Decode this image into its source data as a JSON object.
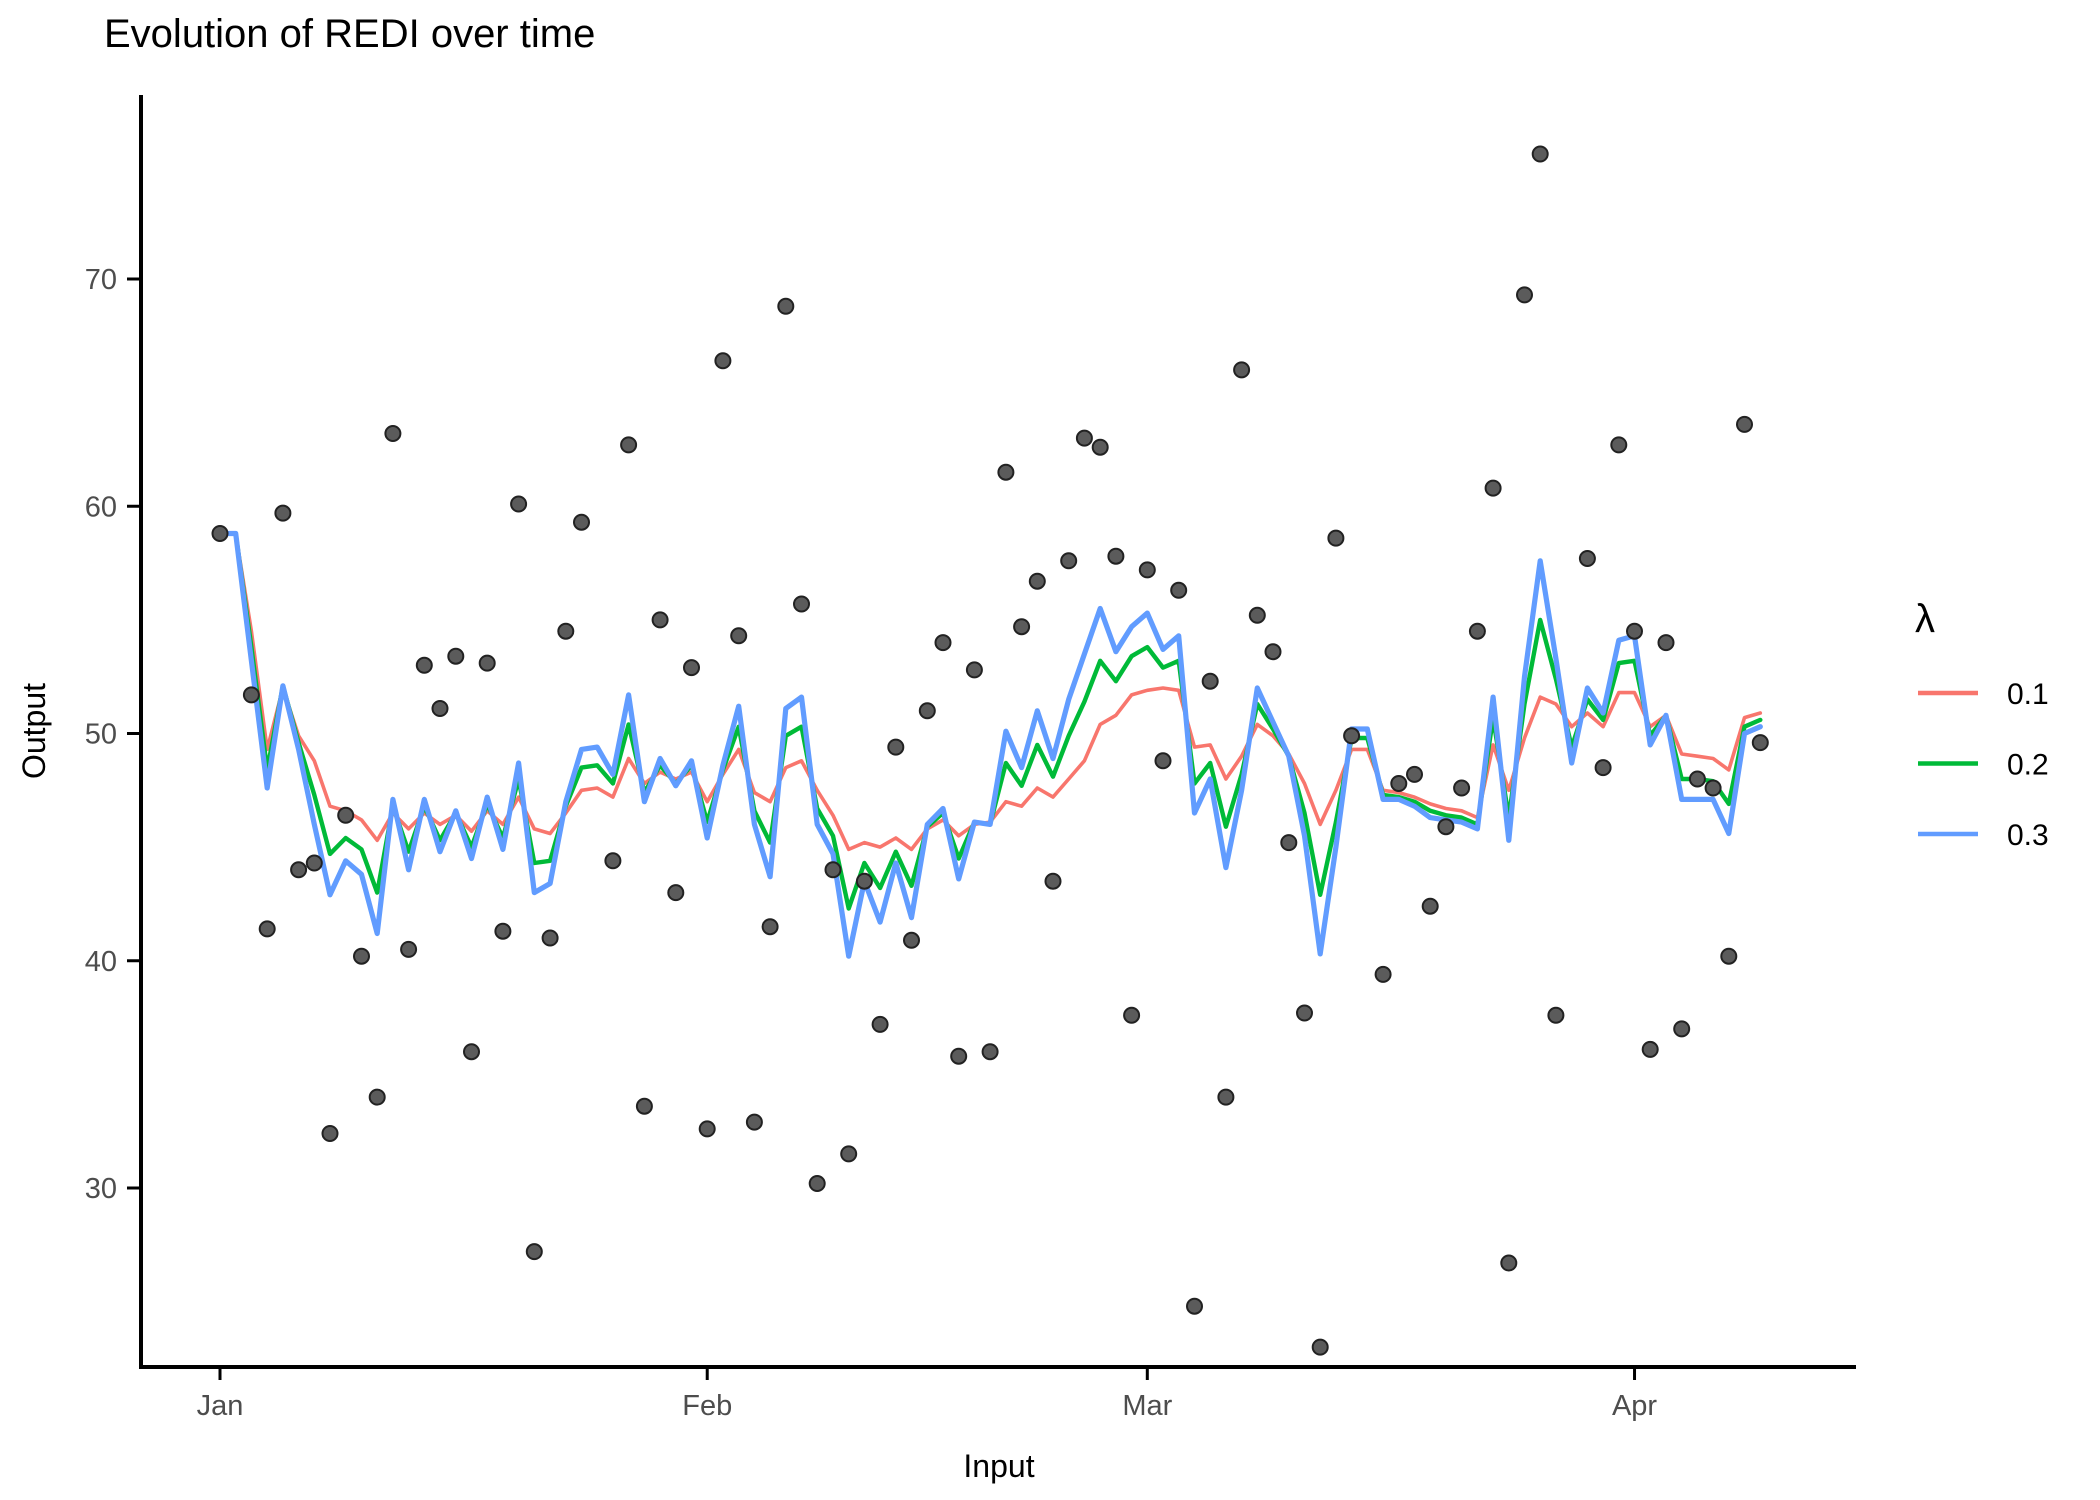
{
  "legend": {
    "title": "λ",
    "entries": [
      {
        "label": "0.1",
        "lambda": 0.1,
        "color": "#F8766D"
      },
      {
        "label": "0.2",
        "lambda": 0.2,
        "color": "#00BA38"
      },
      {
        "label": "0.3",
        "lambda": 0.3,
        "color": "#619CFF"
      }
    ]
  },
  "style": {
    "background": "#FFFFFF",
    "axis_color": "#000000",
    "tick_label_color": "#4D4D4D",
    "point_fill": "#5B5B5B",
    "point_stroke": "#222222",
    "line_widths": [
      3.6,
      4.4,
      5.2
    ]
  },
  "chart_data": {
    "type": "line+scatter",
    "title": "Evolution of REDI over time",
    "xlabel": "Input",
    "ylabel": "Output",
    "x_unit": "day index, day 0 = Jan 1, daily spacing",
    "x_ticks": [
      {
        "label": "Jan",
        "day": 0
      },
      {
        "label": "Feb",
        "day": 31
      },
      {
        "label": "Mar",
        "day": 59
      },
      {
        "label": "Apr",
        "day": 90
      }
    ],
    "y_ticks": [
      30,
      40,
      50,
      60,
      70
    ],
    "ylim": [
      22,
      78.5
    ],
    "grid": false,
    "legend_position": "right",
    "scatter": {
      "name": "raw daily observations",
      "values": [
        58.8,
        null,
        51.7,
        41.4,
        59.7,
        44.0,
        44.3,
        32.4,
        46.4,
        40.2,
        34.0,
        63.2,
        40.5,
        53.0,
        51.1,
        53.4,
        36.0,
        53.1,
        41.3,
        60.1,
        27.2,
        41.0,
        54.5,
        59.3,
        null,
        44.4,
        62.7,
        33.6,
        55.0,
        43.0,
        52.9,
        32.6,
        66.4,
        54.3,
        32.9,
        41.5,
        68.8,
        55.7,
        30.2,
        44.0,
        31.5,
        43.5,
        37.2,
        49.4,
        40.9,
        51.0,
        54.0,
        35.8,
        52.8,
        36.0,
        61.5,
        54.7,
        56.7,
        43.5,
        57.6,
        63.0,
        62.6,
        57.8,
        37.6,
        57.2,
        48.8,
        56.3,
        24.8,
        52.3,
        34.0,
        66.0,
        55.2,
        53.6,
        45.2,
        37.7,
        23.0,
        58.6,
        49.9,
        null,
        39.4,
        47.8,
        48.2,
        42.4,
        45.9,
        47.6,
        54.5,
        60.8,
        26.7,
        69.3,
        75.5,
        37.6,
        null,
        57.7,
        48.5,
        62.7,
        54.5,
        36.1,
        54.0,
        37.0,
        48.0,
        47.6,
        40.2,
        63.6,
        49.6
      ]
    },
    "series": [
      {
        "name": "0.1",
        "lambda": 0.1,
        "color": "#F8766D",
        "values": [
          58.8,
          58.8,
          54.5,
          49.3,
          52.0,
          49.9,
          48.8,
          46.8,
          46.6,
          46.2,
          45.3,
          46.5,
          45.8,
          46.5,
          46.0,
          46.4,
          45.7,
          46.6,
          46.0,
          47.2,
          45.8,
          45.6,
          46.5,
          47.5,
          47.6,
          47.2,
          48.9,
          47.8,
          48.3,
          48.0,
          48.3,
          47.0,
          48.2,
          49.3,
          47.4,
          47.0,
          48.5,
          48.8,
          47.5,
          46.4,
          44.9,
          45.2,
          45.0,
          45.4,
          44.9,
          45.8,
          46.2,
          45.5,
          46.0,
          46.1,
          47.0,
          46.8,
          47.6,
          47.2,
          48.0,
          48.8,
          50.4,
          50.8,
          51.7,
          51.9,
          52.0,
          51.9,
          49.4,
          49.5,
          48.0,
          49.0,
          50.4,
          49.9,
          49.1,
          47.8,
          46.0,
          47.5,
          49.3,
          49.3,
          47.5,
          47.4,
          47.2,
          46.9,
          46.7,
          46.6,
          46.3,
          49.5,
          47.5,
          49.8,
          51.6,
          51.3,
          50.3,
          50.9,
          50.3,
          51.8,
          51.8,
          50.3,
          50.8,
          49.1,
          49.0,
          48.9,
          48.4,
          50.7,
          50.9
        ]
      },
      {
        "name": "0.2",
        "lambda": 0.2,
        "color": "#00BA38",
        "values": [
          58.8,
          58.8,
          53.8,
          48.4,
          52.1,
          49.6,
          47.3,
          44.7,
          45.4,
          44.9,
          43.0,
          46.8,
          44.8,
          46.8,
          45.3,
          46.5,
          45.0,
          46.9,
          45.4,
          48.0,
          44.3,
          44.4,
          46.8,
          48.5,
          48.6,
          47.8,
          50.4,
          47.4,
          48.6,
          47.8,
          48.6,
          46.1,
          48.4,
          50.3,
          46.6,
          45.2,
          49.9,
          50.3,
          46.7,
          45.5,
          42.3,
          44.3,
          43.2,
          44.8,
          43.3,
          45.9,
          46.5,
          44.5,
          46.1,
          46.0,
          48.7,
          47.7,
          49.5,
          48.1,
          49.9,
          51.4,
          53.2,
          52.3,
          53.4,
          53.8,
          52.9,
          53.2,
          47.8,
          48.7,
          45.9,
          48.2,
          51.3,
          50.2,
          49.0,
          46.5,
          42.9,
          46.1,
          49.8,
          49.8,
          47.3,
          47.2,
          47.0,
          46.6,
          46.4,
          46.3,
          46.0,
          50.7,
          46.3,
          51.3,
          55.0,
          52.4,
          49.4,
          51.5,
          50.6,
          53.1,
          53.2,
          49.9,
          50.8,
          48.0,
          48.0,
          47.9,
          46.9,
          50.3,
          50.6
        ]
      },
      {
        "name": "0.3",
        "lambda": 0.3,
        "color": "#619CFF",
        "values": [
          58.8,
          58.8,
          53.2,
          47.6,
          52.1,
          49.3,
          46.0,
          42.9,
          44.4,
          43.8,
          41.2,
          47.1,
          44.0,
          47.1,
          44.8,
          46.6,
          44.5,
          47.2,
          44.9,
          48.7,
          43.0,
          43.4,
          47.0,
          49.3,
          49.4,
          48.2,
          51.7,
          47.0,
          48.9,
          47.7,
          48.8,
          45.4,
          48.6,
          51.2,
          46.0,
          43.7,
          51.1,
          51.6,
          46.0,
          44.7,
          40.2,
          43.5,
          41.7,
          44.3,
          41.9,
          46.0,
          46.7,
          43.6,
          46.1,
          46.0,
          50.1,
          48.5,
          51.0,
          48.9,
          51.5,
          53.5,
          55.5,
          53.6,
          54.7,
          55.3,
          53.7,
          54.3,
          46.5,
          48.0,
          44.1,
          47.5,
          52.0,
          50.5,
          49.0,
          45.5,
          40.3,
          45.0,
          50.2,
          50.2,
          47.1,
          47.1,
          46.8,
          46.3,
          46.2,
          46.1,
          45.8,
          51.6,
          45.3,
          52.5,
          57.6,
          53.3,
          48.7,
          52.0,
          50.9,
          54.1,
          54.3,
          49.5,
          50.8,
          47.1,
          47.1,
          47.1,
          45.6,
          50.0,
          50.3
        ]
      }
    ]
  }
}
